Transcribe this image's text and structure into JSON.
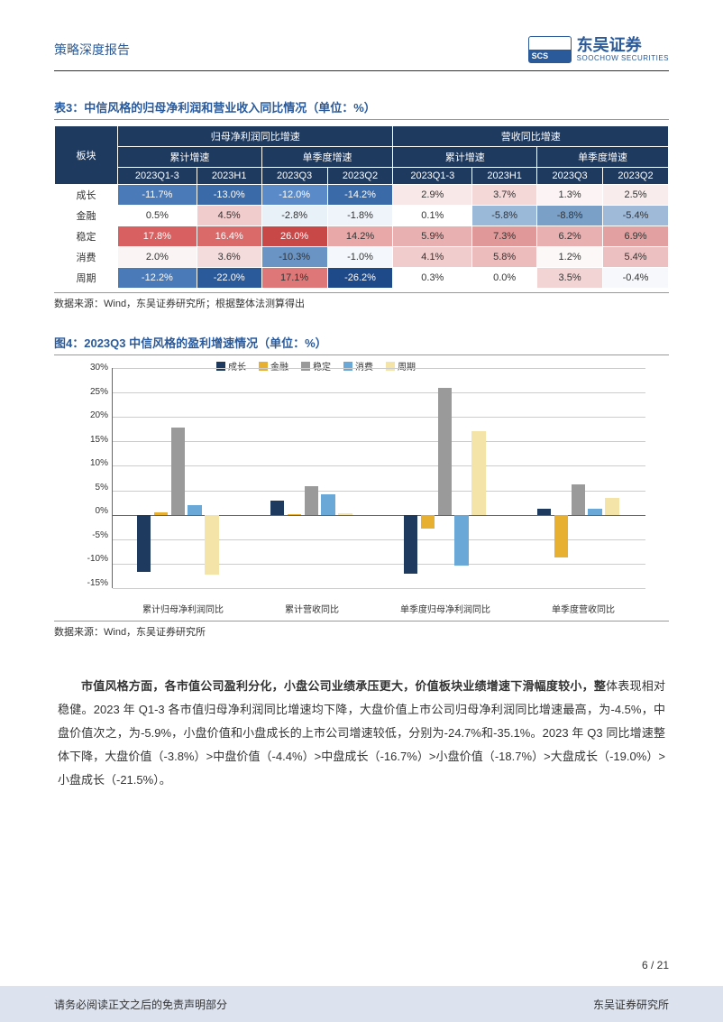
{
  "header": {
    "title": "策略深度报告"
  },
  "logo": {
    "cn": "东吴证券",
    "en": "SOOCHOW SECURITIES"
  },
  "table3": {
    "caption": "表3：中信风格的归母净利润和营业收入同比情况（单位：%）",
    "group_a": "归母净利润同比增速",
    "group_b": "营收同比增速",
    "sub_a1": "累计增速",
    "sub_a2": "单季度增速",
    "sub_b1": "累计增速",
    "sub_b2": "单季度增速",
    "col_label": "板块",
    "cols": [
      "2023Q1-3",
      "2023H1",
      "2023Q3",
      "2023Q2",
      "2023Q1-3",
      "2023H1",
      "2023Q3",
      "2023Q2"
    ],
    "rows": [
      {
        "name": "成长",
        "cells": [
          "-11.7%",
          "-13.0%",
          "-12.0%",
          "-14.2%",
          "2.9%",
          "3.7%",
          "1.3%",
          "2.5%"
        ],
        "colors": [
          "#4a7ab8",
          "#3a6aa8",
          "#5a8ac8",
          "#3a6aa8",
          "#f8e8e8",
          "#f4d8d8",
          "#fcf4f4",
          "#f8ecec"
        ]
      },
      {
        "name": "金融",
        "cells": [
          "0.5%",
          "4.5%",
          "-2.8%",
          "-1.8%",
          "0.1%",
          "-5.8%",
          "-8.8%",
          "-5.4%"
        ],
        "colors": [
          "#ffffff",
          "#f0cccc",
          "#e8f0f8",
          "#eef4fa",
          "#ffffff",
          "#9ab8d8",
          "#7aa0c8",
          "#9fbad8"
        ]
      },
      {
        "name": "稳定",
        "cells": [
          "17.8%",
          "16.4%",
          "26.0%",
          "14.2%",
          "5.9%",
          "7.3%",
          "6.2%",
          "6.9%"
        ],
        "colors": [
          "#d86060",
          "#da6a6a",
          "#c84848",
          "#e8a8a8",
          "#e8b0b0",
          "#e09898",
          "#e8b0b0",
          "#e2a0a0"
        ]
      },
      {
        "name": "消费",
        "cells": [
          "2.0%",
          "3.6%",
          "-10.3%",
          "-1.0%",
          "4.1%",
          "5.8%",
          "1.2%",
          "5.4%"
        ],
        "colors": [
          "#faf4f4",
          "#f4dcdc",
          "#6a94c4",
          "#f4f8fc",
          "#f0cccc",
          "#ecbcbc",
          "#fcf8f8",
          "#ecc0c0"
        ]
      },
      {
        "name": "周期",
        "cells": [
          "-12.2%",
          "-22.0%",
          "17.1%",
          "-26.2%",
          "0.3%",
          "0.0%",
          "3.5%",
          "-0.4%"
        ],
        "colors": [
          "#4a7ab8",
          "#2a5a9a",
          "#de7878",
          "#1f4a8a",
          "#ffffff",
          "#ffffff",
          "#f2d4d4",
          "#f6f8fc"
        ]
      }
    ],
    "source": "数据来源：Wind，东吴证券研究所；根据整体法测算得出"
  },
  "chart4": {
    "caption": "图4：2023Q3 中信风格的盈利增速情况（单位：%）",
    "type": "bar",
    "ylim": [
      -15,
      30
    ],
    "ytick_step": 5,
    "series": [
      {
        "name": "成长",
        "color": "#1f3a5f"
      },
      {
        "name": "金融",
        "color": "#e8b030"
      },
      {
        "name": "稳定",
        "color": "#9a9a9a"
      },
      {
        "name": "消费",
        "color": "#6aa8d8"
      },
      {
        "name": "周期",
        "color": "#f4e4a8"
      }
    ],
    "categories": [
      "累计归母净利润同比",
      "累计营收同比",
      "单季度归母净利润同比",
      "单季度营收同比"
    ],
    "values": [
      [
        -11.7,
        0.5,
        17.8,
        2.0,
        -12.2
      ],
      [
        2.9,
        0.1,
        5.9,
        4.1,
        0.3
      ],
      [
        -12.0,
        -2.8,
        26.0,
        -10.3,
        17.1
      ],
      [
        1.3,
        -8.8,
        6.2,
        1.2,
        3.5
      ]
    ],
    "grid_color": "#cccccc",
    "background_color": "#ffffff",
    "source": "数据来源：Wind，东吴证券研究所"
  },
  "body": {
    "para": "市值风格方面，各市值公司盈利分化，小盘公司业绩承压更大，价值板块业绩增速下滑幅度较小，整体表现相对稳健。2023 年 Q1-3 各市值归母净利润同比增速均下降，大盘价值上市公司归母净利润同比增速最高，为-4.5%，中盘价值次之，为-5.9%，小盘价值和小盘成长的上市公司增速较低，分别为-24.7%和-35.1%。2023 年 Q3 同比增速整体下降，大盘价值（-3.8%）>中盘价值（-4.4%）>中盘成长（-16.7%）>小盘价值（-18.7%）>大盘成长（-19.0%）>小盘成长（-21.5%）。",
    "bold_prefix_len": 44
  },
  "page_num": "6 / 21",
  "footer": {
    "left": "请务必阅读正文之后的免责声明部分",
    "right": "东吴证券研究所"
  }
}
